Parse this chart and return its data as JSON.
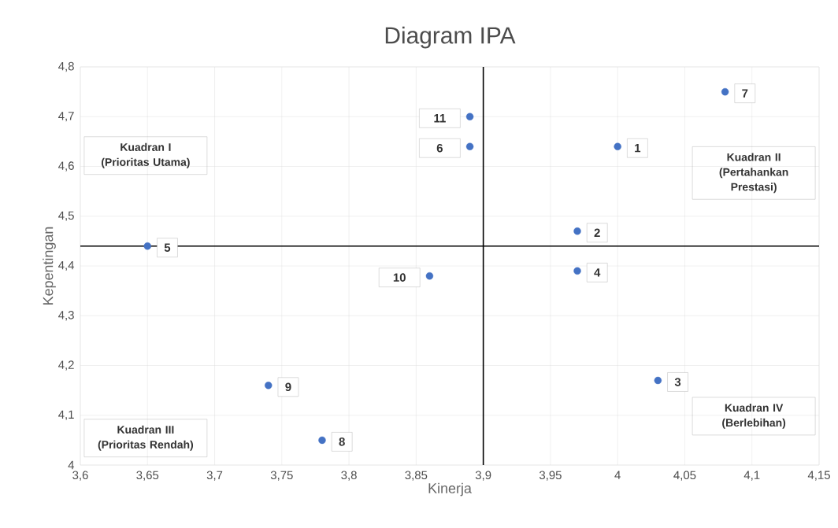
{
  "chart_data": {
    "type": "scatter",
    "title": "Diagram IPA",
    "xlabel": "Kinerja",
    "ylabel": "Kepentingan",
    "x": [
      4.0,
      3.97,
      4.03,
      3.97,
      3.65,
      3.89,
      4.08,
      3.78,
      3.74,
      3.86,
      3.89
    ],
    "values": [
      4.64,
      4.47,
      4.17,
      4.39,
      4.44,
      4.64,
      4.75,
      4.05,
      4.16,
      4.38,
      4.7
    ],
    "color": "#4472c4",
    "marker": "circle",
    "grid": true,
    "xlim": [
      3.6,
      4.15
    ],
    "ylim": [
      4,
      4.8
    ],
    "xticks": [
      {
        "value": 3.6,
        "label": "3,6"
      },
      {
        "value": 3.65,
        "label": "3,65"
      },
      {
        "value": 3.7,
        "label": "3,7"
      },
      {
        "value": 3.75,
        "label": "3,75"
      },
      {
        "value": 3.8,
        "label": "3,8"
      },
      {
        "value": 3.85,
        "label": "3,85"
      },
      {
        "value": 3.9,
        "label": "3,9"
      },
      {
        "value": 3.95,
        "label": "3,95"
      },
      {
        "value": 4,
        "label": "4"
      },
      {
        "value": 4.05,
        "label": "4,05"
      },
      {
        "value": 4.1,
        "label": "4,1"
      },
      {
        "value": 4.15,
        "label": "4,15"
      }
    ],
    "yticks": [
      {
        "value": 4,
        "label": "4"
      },
      {
        "value": 4.1,
        "label": "4,1"
      },
      {
        "value": 4.2,
        "label": "4,2"
      },
      {
        "value": 4.3,
        "label": "4,3"
      },
      {
        "value": 4.4,
        "label": "4,4"
      },
      {
        "value": 4.5,
        "label": "4,5"
      },
      {
        "value": 4.6,
        "label": "4,6"
      },
      {
        "value": 4.7,
        "label": "4,7"
      },
      {
        "value": 4.8,
        "label": "4,8"
      }
    ],
    "ref_lines": [
      {
        "axis": "x",
        "value": 3.9,
        "color": "#000000"
      },
      {
        "axis": "y",
        "value": 4.44,
        "color": "#000000"
      }
    ],
    "annotations": [
      {
        "text": "1",
        "x": 4.0,
        "y": 4.64
      },
      {
        "text": "2",
        "x": 3.97,
        "y": 4.47
      },
      {
        "text": "3",
        "x": 4.03,
        "y": 4.17
      },
      {
        "text": "4",
        "x": 3.97,
        "y": 4.39
      },
      {
        "text": "5",
        "x": 3.65,
        "y": 4.44
      },
      {
        "text": "6",
        "x": 3.89,
        "y": 4.64
      },
      {
        "text": "7",
        "x": 4.08,
        "y": 4.75
      },
      {
        "text": "8",
        "x": 3.78,
        "y": 4.05
      },
      {
        "text": "9",
        "x": 3.74,
        "y": 4.16
      },
      {
        "text": "10",
        "x": 3.86,
        "y": 4.38
      },
      {
        "text": "11",
        "x": 3.89,
        "y": 4.7
      },
      "Kuadran I (Prioritas Utama)",
      "Kuadran II (Pertahankan Prestasi)",
      "Kuadran III (Prioritas Rendah)",
      "Kuadran IV (Berlebihan)"
    ]
  }
}
